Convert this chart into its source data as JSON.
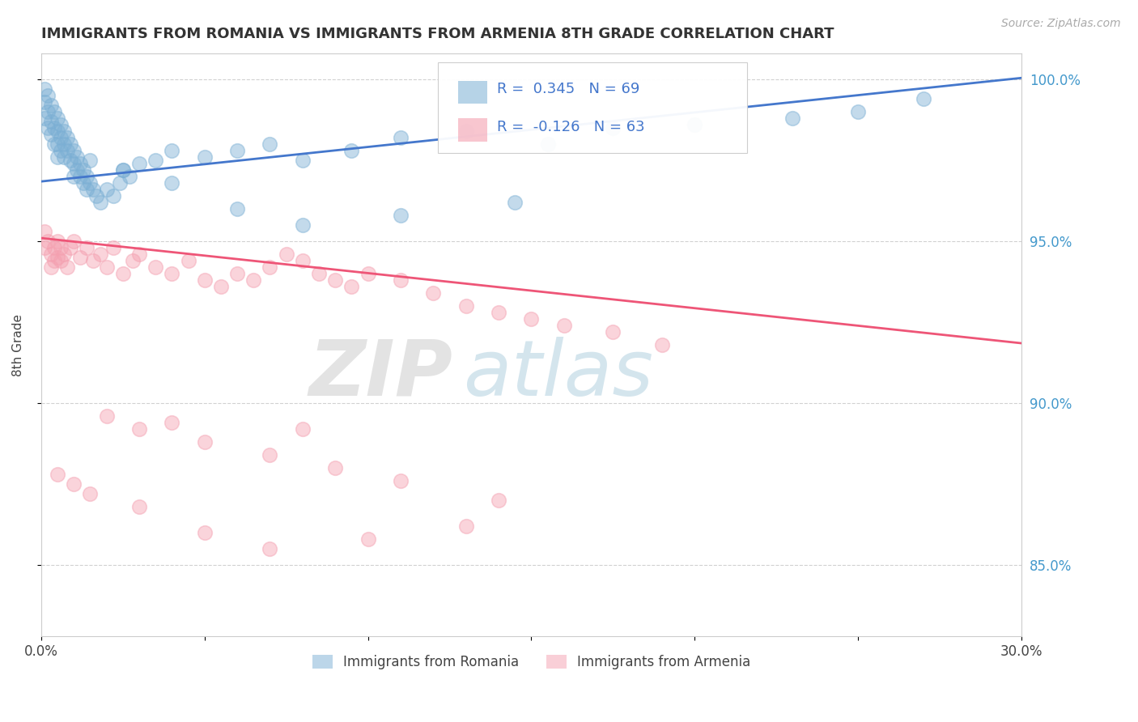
{
  "title": "IMMIGRANTS FROM ROMANIA VS IMMIGRANTS FROM ARMENIA 8TH GRADE CORRELATION CHART",
  "source": "Source: ZipAtlas.com",
  "ylabel": "8th Grade",
  "xlim": [
    0.0,
    0.3
  ],
  "ylim": [
    0.828,
    1.008
  ],
  "xticks": [
    0.0,
    0.05,
    0.1,
    0.15,
    0.2,
    0.25,
    0.3
  ],
  "xticklabels": [
    "0.0%",
    "",
    "",
    "",
    "",
    "",
    "30.0%"
  ],
  "yticks": [
    0.85,
    0.9,
    0.95,
    1.0
  ],
  "yticklabels": [
    "85.0%",
    "90.0%",
    "95.0%",
    "100.0%"
  ],
  "romania_color": "#7bafd4",
  "armenia_color": "#f4a0b0",
  "romania_R": 0.345,
  "romania_N": 69,
  "armenia_R": -0.126,
  "armenia_N": 63,
  "legend_label_romania": "Immigrants from Romania",
  "legend_label_armenia": "Immigrants from Armenia",
  "background_color": "#ffffff",
  "grid_color": "#cccccc",
  "romania_trend_x": [
    0.0,
    0.3
  ],
  "romania_trend_y": [
    0.9685,
    1.0005
  ],
  "armenia_trend_x": [
    0.0,
    0.3
  ],
  "armenia_trend_y": [
    0.951,
    0.9185
  ],
  "romania_scatter_x": [
    0.001,
    0.001,
    0.001,
    0.002,
    0.002,
    0.002,
    0.003,
    0.003,
    0.003,
    0.004,
    0.004,
    0.004,
    0.005,
    0.005,
    0.005,
    0.005,
    0.006,
    0.006,
    0.006,
    0.007,
    0.007,
    0.007,
    0.008,
    0.008,
    0.009,
    0.009,
    0.01,
    0.01,
    0.01,
    0.011,
    0.011,
    0.012,
    0.012,
    0.013,
    0.013,
    0.014,
    0.014,
    0.015,
    0.016,
    0.017,
    0.018,
    0.02,
    0.022,
    0.024,
    0.025,
    0.027,
    0.03,
    0.035,
    0.04,
    0.05,
    0.06,
    0.07,
    0.08,
    0.095,
    0.11,
    0.13,
    0.155,
    0.175,
    0.2,
    0.23,
    0.25,
    0.27,
    0.06,
    0.08,
    0.11,
    0.145,
    0.04,
    0.025,
    0.015
  ],
  "romania_scatter_y": [
    0.997,
    0.993,
    0.988,
    0.995,
    0.99,
    0.985,
    0.992,
    0.987,
    0.983,
    0.99,
    0.985,
    0.98,
    0.988,
    0.984,
    0.98,
    0.976,
    0.986,
    0.982,
    0.978,
    0.984,
    0.98,
    0.976,
    0.982,
    0.978,
    0.98,
    0.975,
    0.978,
    0.974,
    0.97,
    0.976,
    0.972,
    0.974,
    0.97,
    0.972,
    0.968,
    0.97,
    0.966,
    0.968,
    0.966,
    0.964,
    0.962,
    0.966,
    0.964,
    0.968,
    0.972,
    0.97,
    0.974,
    0.975,
    0.978,
    0.976,
    0.978,
    0.98,
    0.975,
    0.978,
    0.982,
    0.984,
    0.98,
    0.985,
    0.986,
    0.988,
    0.99,
    0.994,
    0.96,
    0.955,
    0.958,
    0.962,
    0.968,
    0.972,
    0.975
  ],
  "armenia_scatter_x": [
    0.001,
    0.001,
    0.002,
    0.003,
    0.003,
    0.004,
    0.004,
    0.005,
    0.005,
    0.006,
    0.006,
    0.007,
    0.008,
    0.009,
    0.01,
    0.012,
    0.014,
    0.016,
    0.018,
    0.02,
    0.022,
    0.025,
    0.028,
    0.03,
    0.035,
    0.04,
    0.045,
    0.05,
    0.055,
    0.06,
    0.065,
    0.07,
    0.075,
    0.08,
    0.085,
    0.09,
    0.095,
    0.1,
    0.11,
    0.12,
    0.13,
    0.14,
    0.15,
    0.16,
    0.175,
    0.19,
    0.005,
    0.01,
    0.015,
    0.03,
    0.05,
    0.07,
    0.1,
    0.13,
    0.03,
    0.05,
    0.07,
    0.09,
    0.11,
    0.14,
    0.02,
    0.04,
    0.08
  ],
  "armenia_scatter_y": [
    0.953,
    0.948,
    0.95,
    0.946,
    0.942,
    0.948,
    0.944,
    0.95,
    0.945,
    0.948,
    0.944,
    0.946,
    0.942,
    0.948,
    0.95,
    0.945,
    0.948,
    0.944,
    0.946,
    0.942,
    0.948,
    0.94,
    0.944,
    0.946,
    0.942,
    0.94,
    0.944,
    0.938,
    0.936,
    0.94,
    0.938,
    0.942,
    0.946,
    0.944,
    0.94,
    0.938,
    0.936,
    0.94,
    0.938,
    0.934,
    0.93,
    0.928,
    0.926,
    0.924,
    0.922,
    0.918,
    0.878,
    0.875,
    0.872,
    0.868,
    0.86,
    0.855,
    0.858,
    0.862,
    0.892,
    0.888,
    0.884,
    0.88,
    0.876,
    0.87,
    0.896,
    0.894,
    0.892
  ]
}
